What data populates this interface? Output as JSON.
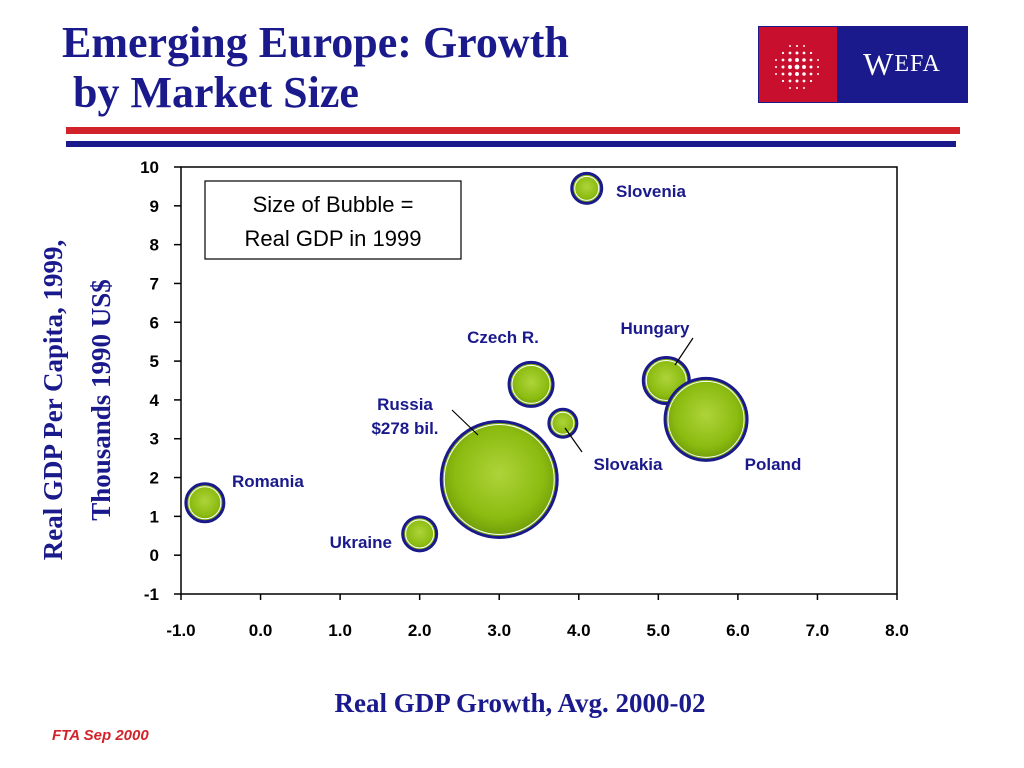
{
  "header": {
    "title": "Emerging Europe: Growth\n by Market Size",
    "logo_text_lead": "W",
    "logo_text_rest": "EFA"
  },
  "footer": {
    "text": "FTA Sep 2000"
  },
  "colors": {
    "title": "#1a1a8c",
    "accent_red": "#d2232a",
    "bubble": "#8bbb10",
    "bubble_edge": "#1a1a8c"
  },
  "chart_data": {
    "type": "scatter",
    "xlabel": "Real GDP Growth, Avg. 2000-02",
    "ylabel": [
      "Real GDP Per Capita, 1999,",
      "Thousands 1990 US$"
    ],
    "xlim": [
      -1.0,
      8.0
    ],
    "ylim": [
      -1,
      10
    ],
    "x_ticks": [
      "-1.0",
      "0.0",
      "1.0",
      "2.0",
      "3.0",
      "4.0",
      "5.0",
      "6.0",
      "7.0",
      "8.0"
    ],
    "y_ticks": [
      "-1",
      "0",
      "1",
      "2",
      "3",
      "4",
      "5",
      "6",
      "7",
      "8",
      "9",
      "10"
    ],
    "legend_note": [
      "Size of Bubble =",
      "Real GDP in 1999"
    ],
    "grid": false,
    "points": [
      {
        "name": "Romania",
        "x": -0.7,
        "y": 1.35,
        "r": 19
      },
      {
        "name": "Ukraine",
        "x": 2.0,
        "y": 0.55,
        "r": 17
      },
      {
        "name": "Russia $278 bil.",
        "label_lines": [
          "Russia",
          "$278 bil."
        ],
        "x": 3.0,
        "y": 1.95,
        "r": 58
      },
      {
        "name": "Czech R.",
        "x": 3.4,
        "y": 4.4,
        "r": 22
      },
      {
        "name": "Slovakia",
        "x": 3.8,
        "y": 3.4,
        "r": 14
      },
      {
        "name": "Slovenia",
        "x": 4.1,
        "y": 9.45,
        "r": 15
      },
      {
        "name": "Hungary",
        "x": 5.1,
        "y": 4.5,
        "r": 23
      },
      {
        "name": "Poland",
        "x": 5.6,
        "y": 3.5,
        "r": 41
      }
    ]
  }
}
